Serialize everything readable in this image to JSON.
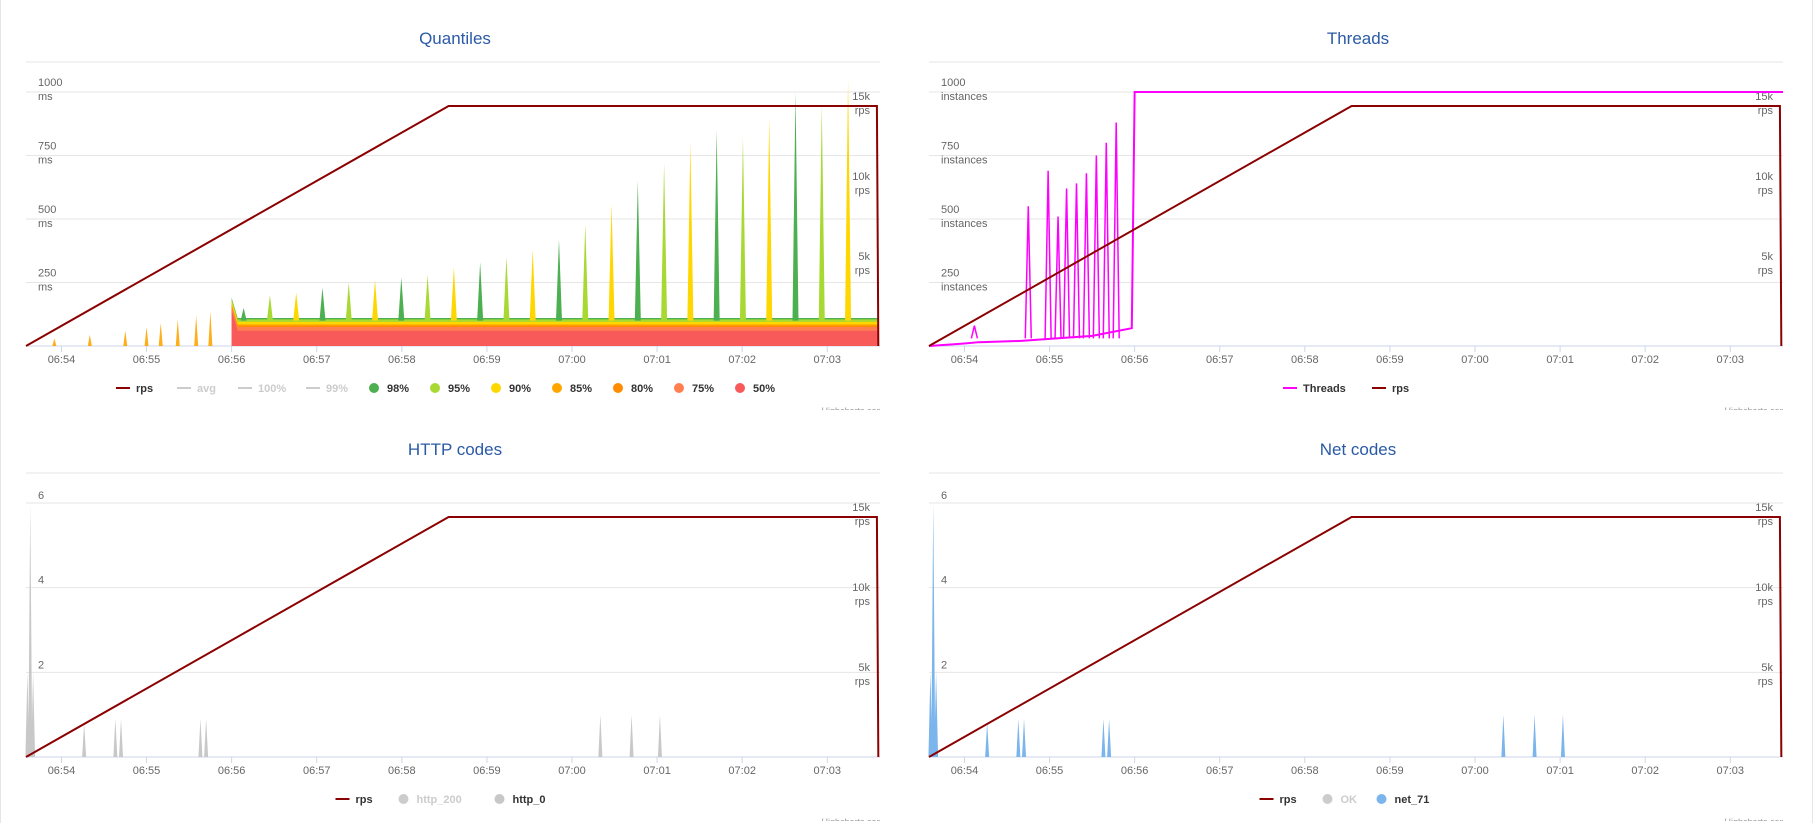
{
  "colors": {
    "title": "#2a5aa6",
    "rps": "#8b0000",
    "avg": "#cccccc",
    "threads": "#ff00ff",
    "gray": "#c8c8c8",
    "net": "#7cb5ec",
    "q98": "#4caf50",
    "q95": "#a8d932",
    "q90": "#ffd700",
    "q85": "#ffa500",
    "q80": "#ff8c00",
    "q75": "#ff7f50",
    "q50": "#f85a5a"
  },
  "credits": "Highcharts.com",
  "chart_data": [
    {
      "id": "quantiles",
      "type": "area",
      "title": "Quantiles",
      "x_ticks": [
        "06:54",
        "06:55",
        "06:56",
        "06:57",
        "06:58",
        "06:59",
        "07:00",
        "07:01",
        "07:02",
        "07:03"
      ],
      "x_range": [
        "06:53:35",
        "07:03:40"
      ],
      "y_left": {
        "max": 1000,
        "ticks": [
          250,
          500,
          750,
          1000
        ],
        "unit": "ms"
      },
      "y_right": {
        "max": 15000,
        "ticks": [
          5000,
          10000,
          15000
        ],
        "tick_labels": [
          "5k",
          "10k",
          "15k"
        ],
        "unit": "rps"
      },
      "rps": [
        [
          "06:53:35",
          0
        ],
        [
          "06:58:33",
          15000
        ],
        [
          "07:03:35",
          15000
        ],
        [
          "07:03:36",
          0
        ]
      ],
      "quantile_levels_after_0656": {
        "50%": 60,
        "75%": 75,
        "80%": 80,
        "85%": 85,
        "90%": 95,
        "95%": 105,
        "98%": 110
      },
      "quantile_peak_ms": [
        150,
        200,
        210,
        230,
        250,
        260,
        270,
        280,
        310,
        330,
        350,
        380,
        420,
        480,
        560,
        650,
        720,
        800,
        850,
        820,
        900,
        1000,
        950,
        1050
      ],
      "legend": [
        {
          "label": "rps",
          "symbol": "line",
          "color_key": "rps",
          "enabled": true
        },
        {
          "label": "avg",
          "symbol": "line",
          "color_key": "avg",
          "enabled": false
        },
        {
          "label": "100%",
          "symbol": "line",
          "color_key": "avg",
          "enabled": false
        },
        {
          "label": "99%",
          "symbol": "line",
          "color_key": "avg",
          "enabled": false
        },
        {
          "label": "98%",
          "symbol": "dot",
          "color_key": "q98",
          "enabled": true
        },
        {
          "label": "95%",
          "symbol": "dot",
          "color_key": "q95",
          "enabled": true
        },
        {
          "label": "90%",
          "symbol": "dot",
          "color_key": "q90",
          "enabled": true
        },
        {
          "label": "85%",
          "symbol": "dot",
          "color_key": "q85",
          "enabled": true
        },
        {
          "label": "80%",
          "symbol": "dot",
          "color_key": "q80",
          "enabled": true
        },
        {
          "label": "75%",
          "symbol": "dot",
          "color_key": "q75",
          "enabled": true
        },
        {
          "label": "50%",
          "symbol": "dot",
          "color_key": "q50",
          "enabled": true
        }
      ]
    },
    {
      "id": "threads",
      "type": "line",
      "title": "Threads",
      "x_ticks": [
        "06:54",
        "06:55",
        "06:56",
        "06:57",
        "06:58",
        "06:59",
        "07:00",
        "07:01",
        "07:02",
        "07:03"
      ],
      "x_range": [
        "06:53:35",
        "07:03:40"
      ],
      "y_left": {
        "max": 1000,
        "ticks": [
          250,
          500,
          750,
          1000
        ],
        "unit": "instances"
      },
      "y_right": {
        "max": 15000,
        "ticks": [
          5000,
          10000,
          15000
        ],
        "tick_labels": [
          "5k",
          "10k",
          "15k"
        ],
        "unit": "rps"
      },
      "threads": [
        [
          "06:53:35",
          0
        ],
        [
          "06:54:00",
          10
        ],
        [
          "06:54:10",
          15
        ],
        [
          "06:54:40",
          20
        ],
        [
          "06:55:30",
          40
        ],
        [
          "06:55:58",
          70
        ],
        [
          "06:56:00",
          1000
        ],
        [
          "07:03:38",
          1000
        ],
        [
          "07:03:39",
          0
        ]
      ],
      "thread_spikes": [
        [
          "06:54:07",
          80
        ],
        [
          "06:54:45",
          550
        ],
        [
          "06:54:59",
          690
        ],
        [
          "06:55:06",
          510
        ],
        [
          "06:55:12",
          620
        ],
        [
          "06:55:19",
          640
        ],
        [
          "06:55:26",
          680
        ],
        [
          "06:55:33",
          750
        ],
        [
          "06:55:40",
          800
        ],
        [
          "06:55:47",
          880
        ]
      ],
      "rps": [
        [
          "06:53:35",
          0
        ],
        [
          "06:58:33",
          15000
        ],
        [
          "07:03:35",
          15000
        ],
        [
          "07:03:36",
          0
        ]
      ],
      "legend": [
        {
          "label": "Threads",
          "symbol": "line",
          "color_key": "threads",
          "enabled": true
        },
        {
          "label": "rps",
          "symbol": "line",
          "color_key": "rps",
          "enabled": true
        }
      ]
    },
    {
      "id": "http",
      "type": "area",
      "title": "HTTP codes",
      "x_ticks": [
        "06:54",
        "06:55",
        "06:56",
        "06:57",
        "06:58",
        "06:59",
        "07:00",
        "07:01",
        "07:02",
        "07:03"
      ],
      "x_range": [
        "06:53:35",
        "07:03:40"
      ],
      "y_left": {
        "max": 6,
        "ticks": [
          2,
          4,
          6
        ]
      },
      "y_right": {
        "max": 15000,
        "ticks": [
          5000,
          10000,
          15000
        ],
        "tick_labels": [
          "5k",
          "10k",
          "15k"
        ],
        "unit": "rps"
      },
      "spikes": [
        [
          "06:53:36",
          2
        ],
        [
          "06:53:38",
          6
        ],
        [
          "06:53:40",
          2
        ],
        [
          "06:54:16",
          0.8
        ],
        [
          "06:54:38",
          0.9
        ],
        [
          "06:54:42",
          0.9
        ],
        [
          "06:55:38",
          0.9
        ],
        [
          "06:55:42",
          0.9
        ],
        [
          "07:00:20",
          1
        ],
        [
          "07:00:42",
          1
        ],
        [
          "07:01:02",
          1
        ]
      ],
      "rps": [
        [
          "06:53:35",
          0
        ],
        [
          "06:58:33",
          15000
        ],
        [
          "07:03:35",
          15000
        ],
        [
          "07:03:36",
          0
        ]
      ],
      "legend": [
        {
          "label": "rps",
          "symbol": "line",
          "color_key": "rps",
          "enabled": true
        },
        {
          "label": "http_200",
          "symbol": "dot",
          "color_key": "gray",
          "enabled": false
        },
        {
          "label": "http_0",
          "symbol": "dot",
          "color_key": "gray",
          "enabled": true
        }
      ]
    },
    {
      "id": "net",
      "type": "area",
      "title": "Net codes",
      "x_ticks": [
        "06:54",
        "06:55",
        "06:56",
        "06:57",
        "06:58",
        "06:59",
        "07:00",
        "07:01",
        "07:02",
        "07:03"
      ],
      "x_range": [
        "06:53:35",
        "07:03:40"
      ],
      "y_left": {
        "max": 6,
        "ticks": [
          2,
          4,
          6
        ]
      },
      "y_right": {
        "max": 15000,
        "ticks": [
          5000,
          10000,
          15000
        ],
        "tick_labels": [
          "5k",
          "10k",
          "15k"
        ],
        "unit": "rps"
      },
      "spikes": [
        [
          "06:53:36",
          2
        ],
        [
          "06:53:38",
          6
        ],
        [
          "06:53:40",
          2
        ],
        [
          "06:54:16",
          0.8
        ],
        [
          "06:54:38",
          0.9
        ],
        [
          "06:54:42",
          0.9
        ],
        [
          "06:55:38",
          0.9
        ],
        [
          "06:55:42",
          0.9
        ],
        [
          "07:00:20",
          1
        ],
        [
          "07:00:42",
          1
        ],
        [
          "07:01:02",
          1
        ]
      ],
      "rps": [
        [
          "06:53:35",
          0
        ],
        [
          "06:58:33",
          15000
        ],
        [
          "07:03:35",
          15000
        ],
        [
          "07:03:36",
          0
        ]
      ],
      "legend": [
        {
          "label": "rps",
          "symbol": "line",
          "color_key": "rps",
          "enabled": true
        },
        {
          "label": "OK",
          "symbol": "dot",
          "color_key": "gray",
          "enabled": false
        },
        {
          "label": "net_71",
          "symbol": "dot",
          "color_key": "net",
          "enabled": true
        }
      ]
    }
  ]
}
